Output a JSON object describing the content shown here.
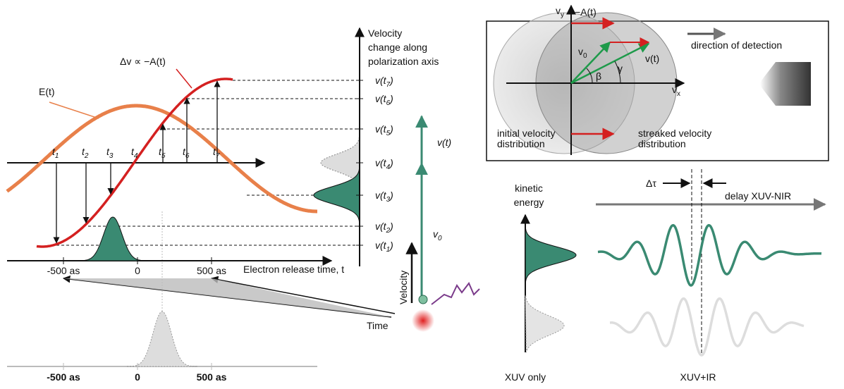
{
  "left": {
    "e_field": "E(t)",
    "vector_potential": "Δv ∝ −A(t)",
    "velocity_title": [
      "Velocity",
      "change along",
      "polarization axis"
    ],
    "velocity_levels": [
      {
        "base": "v(t",
        "sub": "7",
        "end": ")"
      },
      {
        "base": "v(t",
        "sub": "6",
        "end": ")"
      },
      {
        "base": "v(t",
        "sub": "5",
        "end": ")"
      },
      {
        "base": "v(t",
        "sub": "4",
        "end": ")"
      },
      {
        "base": "v(t",
        "sub": "3",
        "end": ")"
      },
      {
        "base": "v(t",
        "sub": "2",
        "end": ")"
      },
      {
        "base": "v(t",
        "sub": "1",
        "end": ")"
      }
    ],
    "release_times": [
      {
        "base": "t",
        "sub": "1"
      },
      {
        "base": "t",
        "sub": "2"
      },
      {
        "base": "t",
        "sub": "3"
      },
      {
        "base": "t",
        "sub": "4"
      },
      {
        "base": "t",
        "sub": "5"
      },
      {
        "base": "t",
        "sub": "6"
      },
      {
        "base": "t",
        "sub": "7"
      }
    ],
    "time_ticks": [
      "-500 as",
      "0",
      "500 as"
    ],
    "time_title": "Electron release time, t",
    "projection_ticks": [
      "-500 as",
      "0",
      "500 as"
    ]
  },
  "middle": {
    "final_velocity": "v(t)",
    "initial_velocity": {
      "base": "v",
      "sub": "0"
    },
    "velocity_axis": "Velocity",
    "time_axis": "Time"
  },
  "streaking_diagram": {
    "axis_y": {
      "base": "v",
      "sub": "y"
    },
    "axis_x": {
      "base": "v",
      "sub": "x"
    },
    "vector_potential": "−A(t)",
    "initial_velocity_vector": {
      "base": "v",
      "sub": "0"
    },
    "final_velocity_vector": "v(t)",
    "angle_beta": "β",
    "angle_gamma": "γ",
    "initial_distribution": [
      "initial velocity",
      "distribution"
    ],
    "streaked_distribution": [
      "streaked velocity",
      "distribution"
    ],
    "detection": "direction of detection"
  },
  "spectra": {
    "energy_axis": [
      "kinetic",
      "energy"
    ],
    "delay": "Δτ",
    "delay_axis": "delay XUV-NIR",
    "xuv_only": "XUV only",
    "xuv_ir": "XUV+IR"
  }
}
